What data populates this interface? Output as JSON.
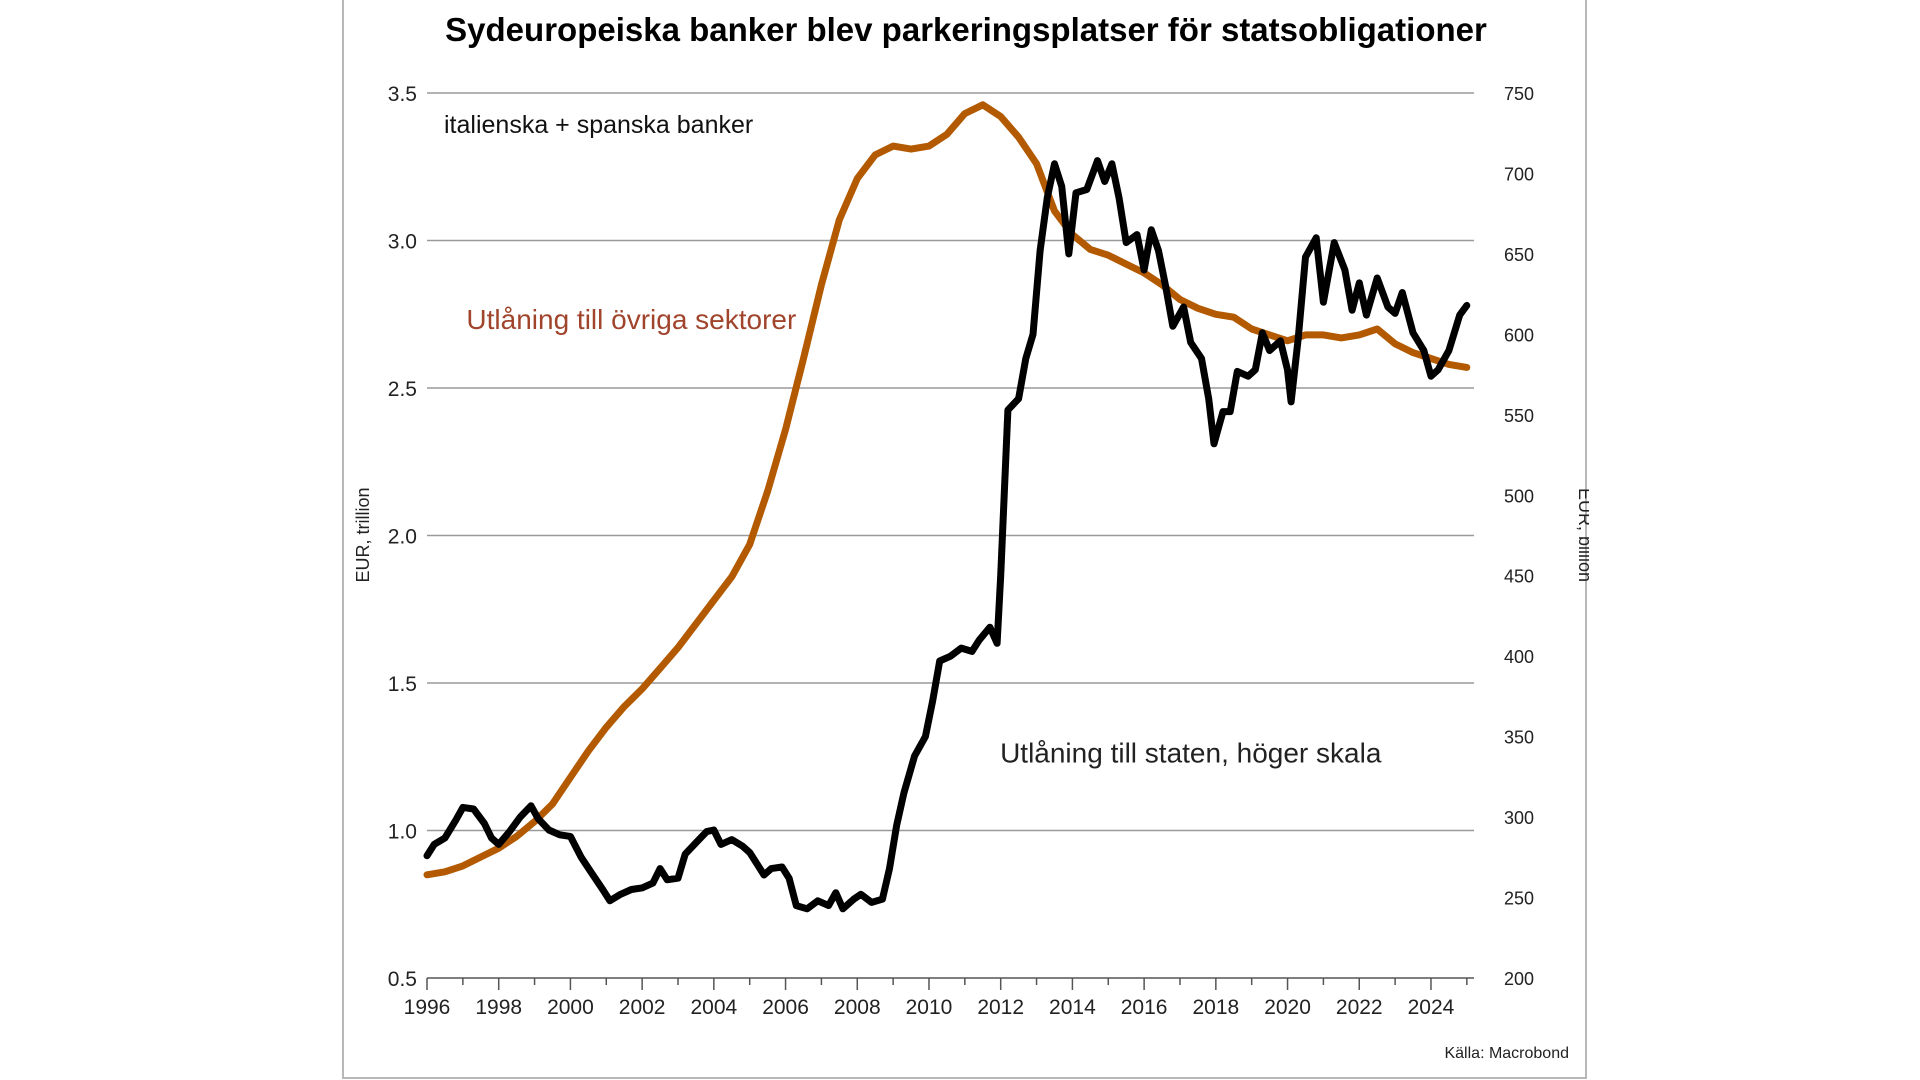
{
  "chart_data": {
    "type": "line",
    "title": "Sydeuropeiska banker blev parkeringsplatser för statsobligationer",
    "subtitle": "italienska + spanska banker",
    "ylabel_left": "EUR, trillion",
    "ylabel_right": "EUR, billion",
    "source": "Källa: Macrobond",
    "xlim": [
      1996,
      2025.2
    ],
    "ylim_left": [
      0.5,
      3.5
    ],
    "ylim_right": [
      200,
      750
    ],
    "x_ticks": [
      "1996",
      "1998",
      "2000",
      "2002",
      "2004",
      "2006",
      "2008",
      "2010",
      "2012",
      "2014",
      "2016",
      "2018",
      "2020",
      "2022",
      "2024"
    ],
    "y_left_ticks": [
      "0.5",
      "1.0",
      "1.5",
      "2.0",
      "2.5",
      "3.0",
      "3.5"
    ],
    "y_right_ticks": [
      "200",
      "250",
      "300",
      "350",
      "400",
      "450",
      "500",
      "550",
      "600",
      "650",
      "700",
      "750"
    ],
    "grid": "horizontal",
    "series": [
      {
        "name": "Utlåning till övriga sektorer",
        "axis": "left",
        "color": "#b35a00",
        "points": [
          [
            1996.0,
            0.85
          ],
          [
            1996.5,
            0.86
          ],
          [
            1997.0,
            0.88
          ],
          [
            1997.5,
            0.91
          ],
          [
            1998.0,
            0.94
          ],
          [
            1998.5,
            0.98
          ],
          [
            1999.0,
            1.03
          ],
          [
            1999.5,
            1.09
          ],
          [
            2000.0,
            1.18
          ],
          [
            2000.5,
            1.27
          ],
          [
            2001.0,
            1.35
          ],
          [
            2001.5,
            1.42
          ],
          [
            2002.0,
            1.48
          ],
          [
            2002.5,
            1.55
          ],
          [
            2003.0,
            1.62
          ],
          [
            2003.5,
            1.7
          ],
          [
            2004.0,
            1.78
          ],
          [
            2004.5,
            1.86
          ],
          [
            2005.0,
            1.97
          ],
          [
            2005.5,
            2.15
          ],
          [
            2006.0,
            2.36
          ],
          [
            2006.5,
            2.6
          ],
          [
            2007.0,
            2.85
          ],
          [
            2007.5,
            3.07
          ],
          [
            2008.0,
            3.21
          ],
          [
            2008.5,
            3.29
          ],
          [
            2009.0,
            3.32
          ],
          [
            2009.5,
            3.31
          ],
          [
            2010.0,
            3.32
          ],
          [
            2010.5,
            3.36
          ],
          [
            2011.0,
            3.43
          ],
          [
            2011.5,
            3.46
          ],
          [
            2012.0,
            3.42
          ],
          [
            2012.5,
            3.35
          ],
          [
            2013.0,
            3.26
          ],
          [
            2013.5,
            3.1
          ],
          [
            2014.0,
            3.02
          ],
          [
            2014.5,
            2.97
          ],
          [
            2015.0,
            2.95
          ],
          [
            2015.5,
            2.92
          ],
          [
            2016.0,
            2.89
          ],
          [
            2016.5,
            2.85
          ],
          [
            2017.0,
            2.8
          ],
          [
            2017.5,
            2.77
          ],
          [
            2018.0,
            2.75
          ],
          [
            2018.5,
            2.74
          ],
          [
            2019.0,
            2.7
          ],
          [
            2019.5,
            2.68
          ],
          [
            2020.0,
            2.66
          ],
          [
            2020.5,
            2.68
          ],
          [
            2021.0,
            2.68
          ],
          [
            2021.5,
            2.67
          ],
          [
            2022.0,
            2.68
          ],
          [
            2022.5,
            2.7
          ],
          [
            2023.0,
            2.65
          ],
          [
            2023.5,
            2.62
          ],
          [
            2024.0,
            2.6
          ],
          [
            2024.5,
            2.58
          ],
          [
            2025.0,
            2.57
          ]
        ]
      },
      {
        "name": "Utlåning till staten, höger skala",
        "axis": "right",
        "color": "#000000",
        "points": [
          [
            1996.0,
            276
          ],
          [
            1996.2,
            283
          ],
          [
            1996.5,
            287
          ],
          [
            1996.8,
            298
          ],
          [
            1997.0,
            306
          ],
          [
            1997.3,
            305
          ],
          [
            1997.6,
            296
          ],
          [
            1997.8,
            287
          ],
          [
            1998.0,
            283
          ],
          [
            1998.3,
            291
          ],
          [
            1998.6,
            300
          ],
          [
            1998.9,
            307
          ],
          [
            1999.1,
            299
          ],
          [
            1999.4,
            292
          ],
          [
            1999.7,
            289
          ],
          [
            2000.0,
            288
          ],
          [
            2000.3,
            275
          ],
          [
            2000.6,
            265
          ],
          [
            2000.9,
            255
          ],
          [
            2001.1,
            248
          ],
          [
            2001.4,
            252
          ],
          [
            2001.7,
            255
          ],
          [
            2002.0,
            256
          ],
          [
            2002.3,
            259
          ],
          [
            2002.5,
            268
          ],
          [
            2002.7,
            261
          ],
          [
            2003.0,
            262
          ],
          [
            2003.2,
            277
          ],
          [
            2003.5,
            284
          ],
          [
            2003.8,
            291
          ],
          [
            2004.0,
            292
          ],
          [
            2004.2,
            283
          ],
          [
            2004.5,
            286
          ],
          [
            2004.8,
            282
          ],
          [
            2005.0,
            278
          ],
          [
            2005.2,
            271
          ],
          [
            2005.4,
            264
          ],
          [
            2005.6,
            268
          ],
          [
            2005.9,
            269
          ],
          [
            2006.1,
            262
          ],
          [
            2006.3,
            245
          ],
          [
            2006.6,
            243
          ],
          [
            2006.9,
            248
          ],
          [
            2007.2,
            245
          ],
          [
            2007.4,
            253
          ],
          [
            2007.6,
            243
          ],
          [
            2007.9,
            249
          ],
          [
            2008.1,
            252
          ],
          [
            2008.4,
            247
          ],
          [
            2008.7,
            249
          ],
          [
            2008.9,
            268
          ],
          [
            2009.1,
            295
          ],
          [
            2009.3,
            315
          ],
          [
            2009.6,
            338
          ],
          [
            2009.9,
            350
          ],
          [
            2010.1,
            372
          ],
          [
            2010.3,
            397
          ],
          [
            2010.6,
            400
          ],
          [
            2010.9,
            405
          ],
          [
            2011.2,
            403
          ],
          [
            2011.4,
            410
          ],
          [
            2011.7,
            418
          ],
          [
            2011.9,
            408
          ],
          [
            2012.0,
            450
          ],
          [
            2012.2,
            553
          ],
          [
            2012.5,
            560
          ],
          [
            2012.7,
            585
          ],
          [
            2012.9,
            600
          ],
          [
            2013.1,
            652
          ],
          [
            2013.3,
            685
          ],
          [
            2013.5,
            706
          ],
          [
            2013.7,
            692
          ],
          [
            2013.9,
            650
          ],
          [
            2014.1,
            688
          ],
          [
            2014.4,
            690
          ],
          [
            2014.7,
            708
          ],
          [
            2014.9,
            695
          ],
          [
            2015.1,
            706
          ],
          [
            2015.3,
            685
          ],
          [
            2015.5,
            657
          ],
          [
            2015.8,
            662
          ],
          [
            2016.0,
            640
          ],
          [
            2016.2,
            665
          ],
          [
            2016.4,
            652
          ],
          [
            2016.6,
            630
          ],
          [
            2016.8,
            605
          ],
          [
            2017.1,
            617
          ],
          [
            2017.3,
            595
          ],
          [
            2017.6,
            585
          ],
          [
            2017.8,
            560
          ],
          [
            2017.95,
            532
          ],
          [
            2018.2,
            552
          ],
          [
            2018.4,
            552
          ],
          [
            2018.6,
            577
          ],
          [
            2018.9,
            574
          ],
          [
            2019.1,
            578
          ],
          [
            2019.3,
            601
          ],
          [
            2019.5,
            590
          ],
          [
            2019.8,
            596
          ],
          [
            2020.0,
            578
          ],
          [
            2020.1,
            558
          ],
          [
            2020.3,
            598
          ],
          [
            2020.5,
            648
          ],
          [
            2020.8,
            660
          ],
          [
            2021.0,
            620
          ],
          [
            2021.3,
            657
          ],
          [
            2021.6,
            640
          ],
          [
            2021.8,
            615
          ],
          [
            2022.0,
            632
          ],
          [
            2022.2,
            612
          ],
          [
            2022.5,
            635
          ],
          [
            2022.8,
            617
          ],
          [
            2023.0,
            613
          ],
          [
            2023.2,
            626
          ],
          [
            2023.5,
            601
          ],
          [
            2023.8,
            590
          ],
          [
            2024.0,
            574
          ],
          [
            2024.2,
            578
          ],
          [
            2024.5,
            590
          ],
          [
            2024.8,
            612
          ],
          [
            2025.0,
            618
          ]
        ]
      }
    ],
    "annotations": [
      {
        "text": "Utlåning till övriga sektorer",
        "color": "#a0442c",
        "x": 2001.7,
        "y_left": 2.7
      },
      {
        "text": "Utlåning till staten, höger skala",
        "color": "#222222",
        "x": 2017.3,
        "y_left": 1.23
      }
    ]
  }
}
